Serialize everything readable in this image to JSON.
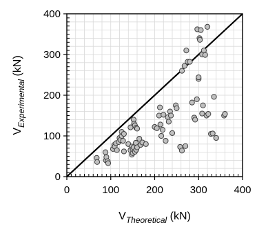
{
  "chart_data": {
    "type": "scatter",
    "xlabel": {
      "base": "V",
      "sub": "Theoretical",
      "unit": " (kN)"
    },
    "ylabel": {
      "base": "V",
      "sub": "Experimental",
      "unit": " (kN)"
    },
    "xlim": [
      0,
      400
    ],
    "ylim": [
      0,
      400
    ],
    "xticks": [
      0,
      100,
      200,
      300,
      400
    ],
    "yticks": [
      0,
      100,
      200,
      300,
      400
    ],
    "grid": true,
    "reference_line": {
      "x": [
        0,
        400
      ],
      "y": [
        0,
        400
      ],
      "color": "#000000"
    },
    "marker": {
      "fill": "#c0c0c0",
      "stroke": "#404040"
    },
    "points": [
      [
        68,
        46
      ],
      [
        69,
        36
      ],
      [
        88,
        60
      ],
      [
        89,
        40
      ],
      [
        90,
        48
      ],
      [
        93,
        38
      ],
      [
        94,
        33
      ],
      [
        105,
        68
      ],
      [
        108,
        78
      ],
      [
        109,
        74
      ],
      [
        112,
        82
      ],
      [
        114,
        65
      ],
      [
        118,
        85
      ],
      [
        120,
        95
      ],
      [
        122,
        90
      ],
      [
        125,
        100
      ],
      [
        125,
        110
      ],
      [
        128,
        88
      ],
      [
        130,
        62
      ],
      [
        130,
        105
      ],
      [
        140,
        80
      ],
      [
        145,
        65
      ],
      [
        145,
        121
      ],
      [
        148,
        74
      ],
      [
        148,
        54
      ],
      [
        150,
        58
      ],
      [
        150,
        68
      ],
      [
        152,
        72
      ],
      [
        152,
        140
      ],
      [
        153,
        130
      ],
      [
        155,
        126
      ],
      [
        155,
        61
      ],
      [
        157,
        83
      ],
      [
        158,
        120
      ],
      [
        158,
        66
      ],
      [
        160,
        72
      ],
      [
        160,
        118
      ],
      [
        165,
        93
      ],
      [
        168,
        78
      ],
      [
        172,
        84
      ],
      [
        180,
        80
      ],
      [
        200,
        122
      ],
      [
        205,
        119
      ],
      [
        210,
        150
      ],
      [
        212,
        170
      ],
      [
        213,
        128
      ],
      [
        215,
        100
      ],
      [
        218,
        115
      ],
      [
        220,
        152
      ],
      [
        225,
        88
      ],
      [
        230,
        146
      ],
      [
        232,
        135
      ],
      [
        235,
        160
      ],
      [
        237,
        150
      ],
      [
        240,
        107
      ],
      [
        248,
        175
      ],
      [
        250,
        168
      ],
      [
        258,
        73
      ],
      [
        262,
        64
      ],
      [
        262,
        260
      ],
      [
        268,
        272
      ],
      [
        270,
        75
      ],
      [
        272,
        310
      ],
      [
        275,
        282
      ],
      [
        280,
        282
      ],
      [
        285,
        182
      ],
      [
        290,
        145
      ],
      [
        292,
        140
      ],
      [
        296,
        190
      ],
      [
        297,
        362
      ],
      [
        300,
        240
      ],
      [
        300,
        244
      ],
      [
        302,
        340
      ],
      [
        303,
        336
      ],
      [
        305,
        360
      ],
      [
        308,
        300
      ],
      [
        308,
        155
      ],
      [
        310,
        175
      ],
      [
        312,
        310
      ],
      [
        315,
        299
      ],
      [
        318,
        150
      ],
      [
        320,
        368
      ],
      [
        322,
        154
      ],
      [
        328,
        105
      ],
      [
        332,
        106
      ],
      [
        335,
        196
      ],
      [
        340,
        95
      ],
      [
        358,
        150
      ],
      [
        360,
        154
      ]
    ]
  }
}
